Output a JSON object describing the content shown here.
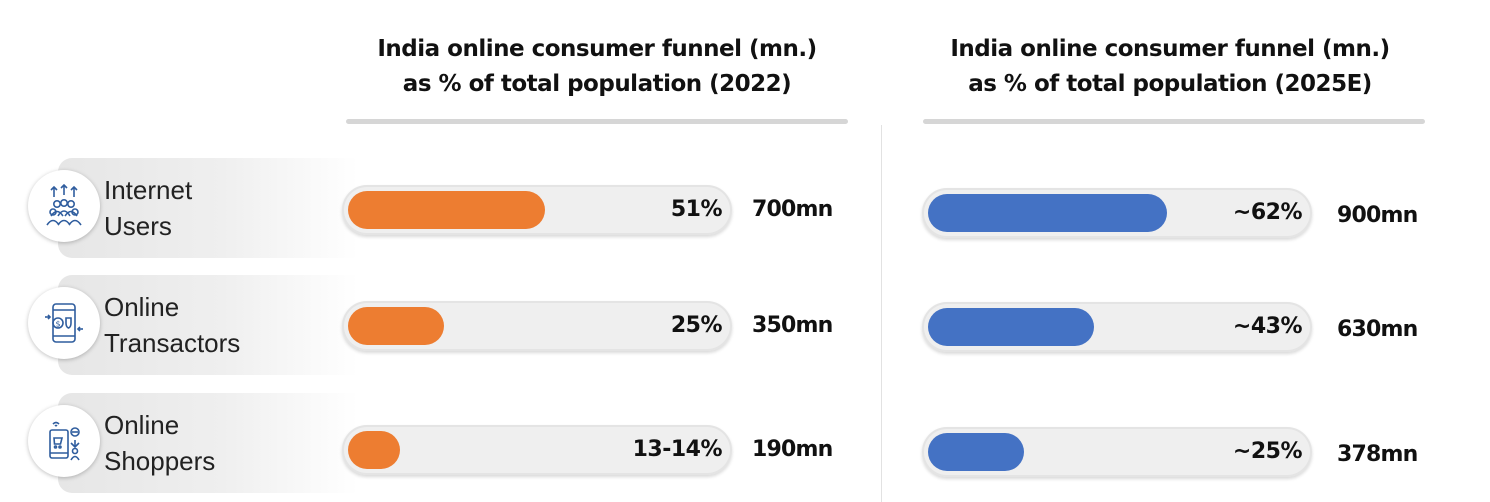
{
  "colors": {
    "panel_2022": "#ED7D31",
    "panel_2025": "#4472C4",
    "icon": "#2F5D9E"
  },
  "categories": [
    {
      "line1": "Internet",
      "line2": "Users",
      "icon": "people-growth-icon"
    },
    {
      "line1": "Online",
      "line2": "Transactors",
      "icon": "mobile-payment-icon"
    },
    {
      "line1": "Online",
      "line2": "Shoppers",
      "icon": "online-shopping-icon"
    }
  ],
  "chart_data": [
    {
      "type": "bar",
      "title": "India online consumer funnel (mn.) as % of total population (2022)",
      "title_lines": [
        "India online consumer funnel (mn.)",
        "as % of total population (2022)"
      ],
      "categories": [
        "Internet Users",
        "Online Transactors",
        "Online Shoppers"
      ],
      "values": [
        51,
        25,
        13.5
      ],
      "value_labels": [
        "51%",
        "25%",
        "13-14%"
      ],
      "absolute_labels": [
        "700mn",
        "350mn",
        "190mn"
      ],
      "ylim": [
        0,
        100
      ]
    },
    {
      "type": "bar",
      "title": "India online consumer funnel (mn.) as % of total population (2025E)",
      "title_lines": [
        "India online consumer funnel (mn.)",
        "as % of total population (2025E)"
      ],
      "categories": [
        "Internet Users",
        "Online Transactors",
        "Online Shoppers"
      ],
      "values": [
        62,
        43,
        25
      ],
      "value_labels": [
        "~62%",
        "~43%",
        "~25%"
      ],
      "absolute_labels": [
        "900mn",
        "630mn",
        "378mn"
      ],
      "ylim": [
        0,
        100
      ]
    }
  ]
}
